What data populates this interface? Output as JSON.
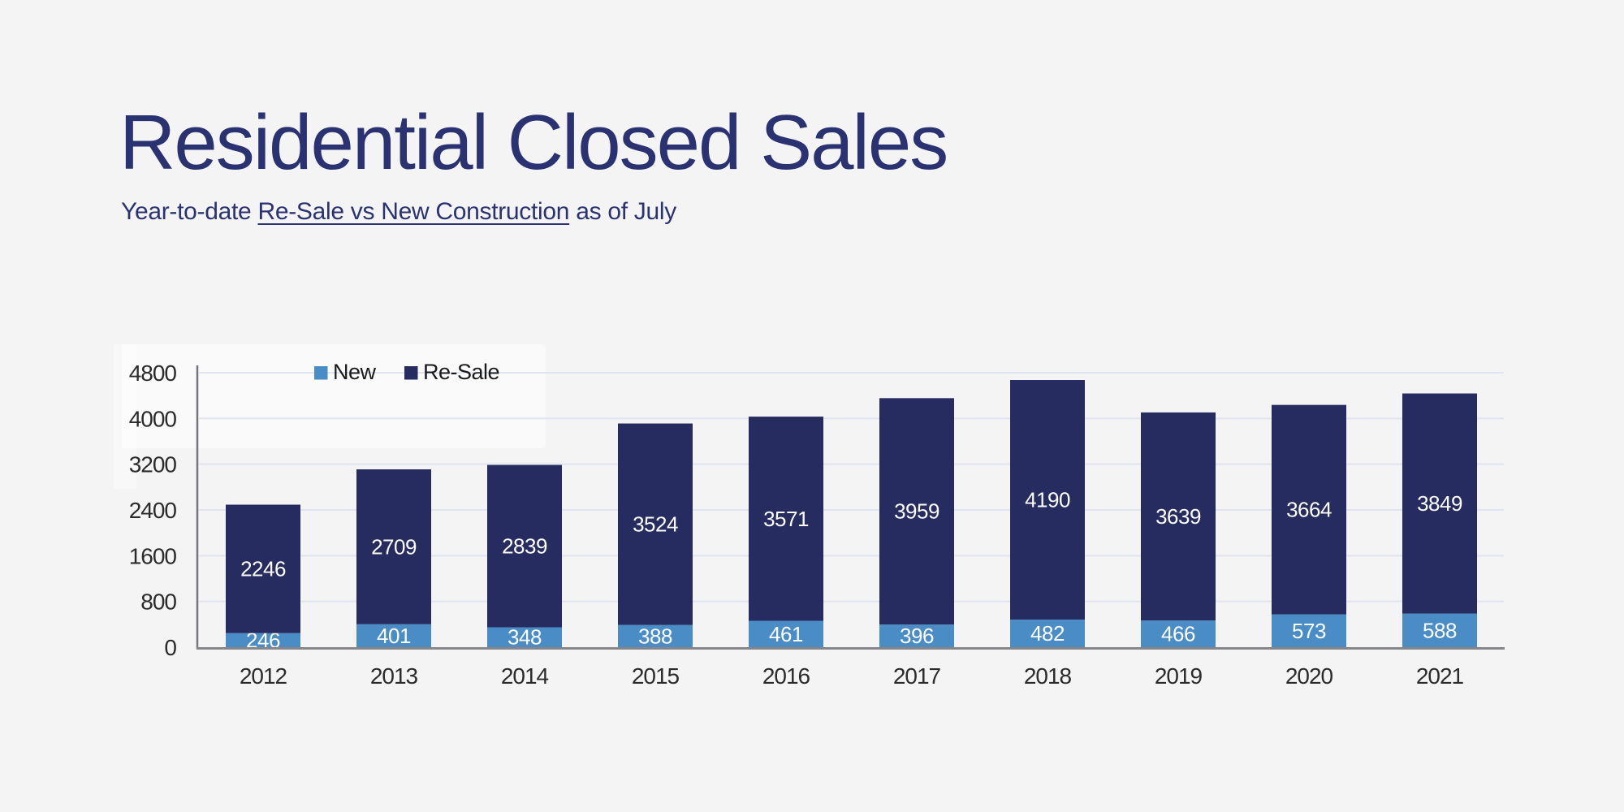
{
  "page": {
    "background_color": "#f4f4f5"
  },
  "header": {
    "title": "Residential Closed Sales",
    "subtitle_prefix": "Year-to-date ",
    "subtitle_underlined": "Re-Sale vs New Construction",
    "subtitle_suffix": " as of July"
  },
  "chart_data": {
    "type": "bar",
    "stacked": true,
    "title": "Residential Closed Sales",
    "subtitle": "Year-to-date Re-Sale vs New Construction as of July",
    "categories": [
      "2012",
      "2013",
      "2014",
      "2015",
      "2016",
      "2017",
      "2018",
      "2019",
      "2020",
      "2021"
    ],
    "series": [
      {
        "name": "New",
        "color": "#4a8cc6",
        "values": [
          246,
          401,
          348,
          388,
          461,
          396,
          482,
          466,
          573,
          588
        ]
      },
      {
        "name": "Re-Sale",
        "color": "#262c5f",
        "values": [
          2246,
          2709,
          2839,
          3524,
          3571,
          3959,
          4190,
          3639,
          3664,
          3849
        ]
      }
    ],
    "xlabel": "",
    "ylabel": "",
    "ylim": [
      0,
      4800
    ],
    "y_ticks": [
      0,
      800,
      1600,
      2400,
      3200,
      4000,
      4800
    ],
    "grid": true,
    "legend_position": "top-left-inside",
    "value_labels": "inside-center",
    "style_colors": {
      "grid_line": "#dfe4ef",
      "y_axis_line": "#75757d",
      "baseline": "#85858a",
      "tick_text": "#2b2b2b",
      "value_text": "#ffffff",
      "legend_text": "#1a1a1a",
      "highlight_panel": "#ffffff"
    }
  }
}
